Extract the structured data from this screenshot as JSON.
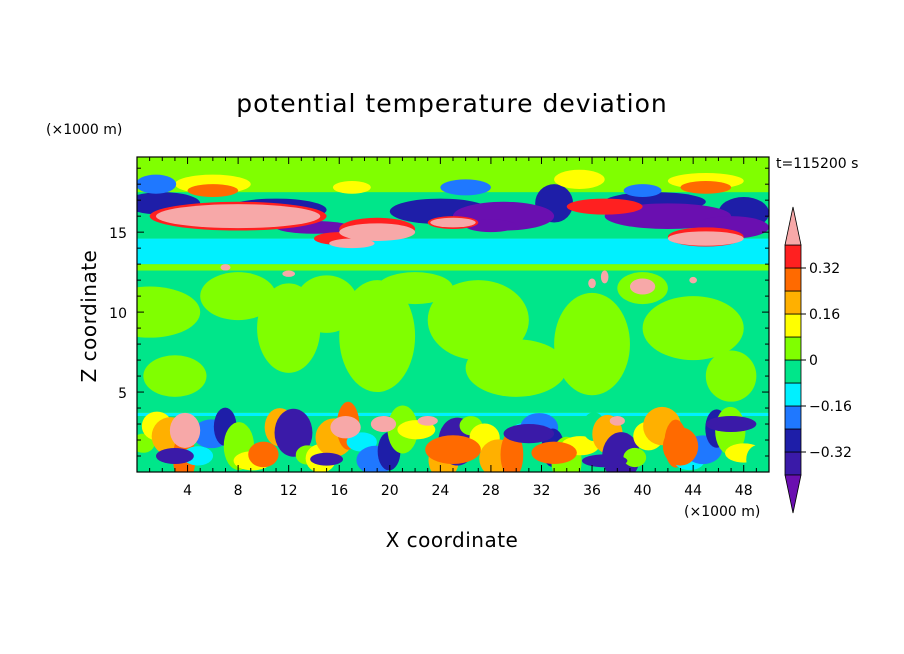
{
  "chart_data": {
    "type": "contour",
    "title": "potential temperature deviation",
    "xlabel": "X coordinate",
    "ylabel": "Z coordinate",
    "x_unit": "(×1000 m)",
    "y_unit": "(×1000 m)",
    "time_label": "t=115200 s",
    "xlim": [
      0,
      50
    ],
    "ylim": [
      0,
      19.7
    ],
    "x_ticks": [
      4,
      8,
      12,
      16,
      20,
      24,
      28,
      32,
      36,
      40,
      44,
      48
    ],
    "y_ticks": [
      5,
      10,
      15
    ],
    "colorbar": {
      "levels": [
        -0.4,
        -0.32,
        -0.24,
        -0.16,
        -0.08,
        0,
        0.08,
        0.16,
        0.24,
        0.32,
        0.4
      ],
      "labels": [
        "0.32",
        "0.16",
        "0",
        "-0.16",
        "-0.32"
      ],
      "label_values": [
        0.32,
        0.16,
        0,
        -0.16,
        -0.32
      ],
      "colors": [
        "#6a0fb0",
        "#3a1aa8",
        "#1e1ea8",
        "#1f78ff",
        "#00f0ff",
        "#00e68a",
        "#80ff00",
        "#ffff00",
        "#ffb000",
        "#ff6a00",
        "#ff2020",
        "#f7a8a8"
      ],
      "extend": "both"
    },
    "bands": [
      {
        "z0": 0,
        "z1": 3.5,
        "value": "mixed",
        "pattern": "turbulent"
      },
      {
        "z0": 3.5,
        "z1": 3.7,
        "value": -0.1
      },
      {
        "z0": 3.7,
        "z1": 13.0,
        "value": 0.04
      },
      {
        "z0": 13.0,
        "z1": 14.6,
        "value": -0.1
      },
      {
        "z0": 14.6,
        "z1": 17.5,
        "value": "mixed",
        "pattern": "layered"
      },
      {
        "z0": 17.5,
        "z1": 19.7,
        "value": 0.02
      }
    ]
  }
}
